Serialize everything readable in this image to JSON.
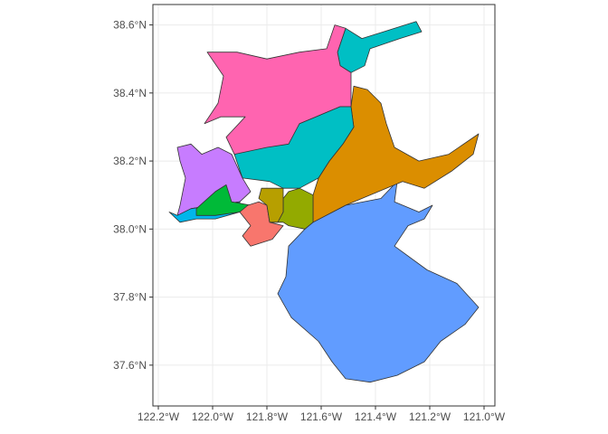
{
  "map": {
    "axes": {
      "x_ticks": [
        {
          "value": -122.2,
          "label": "122.2°W"
        },
        {
          "value": -122.0,
          "label": "122.0°W"
        },
        {
          "value": -121.8,
          "label": "121.8°W"
        },
        {
          "value": -121.6,
          "label": "121.6°W"
        },
        {
          "value": -121.4,
          "label": "121.4°W"
        },
        {
          "value": -121.2,
          "label": "121.2°W"
        },
        {
          "value": -121.0,
          "label": "121.0°W"
        }
      ],
      "y_ticks": [
        {
          "value": 38.6,
          "label": "38.6°N"
        },
        {
          "value": 38.4,
          "label": "38.4°N"
        },
        {
          "value": 38.2,
          "label": "38.2°N"
        },
        {
          "value": 38.0,
          "label": "38.0°N"
        },
        {
          "value": 37.8,
          "label": "37.8°N"
        },
        {
          "value": 37.6,
          "label": "37.6°N"
        }
      ],
      "xlim": [
        -122.22,
        -120.96
      ],
      "ylim": [
        37.48,
        38.66
      ]
    },
    "regions": [
      {
        "color": "#619CFF",
        "coords": [
          [
            -121.63,
            38.02
          ],
          [
            -121.51,
            38.07
          ],
          [
            -121.38,
            38.09
          ],
          [
            -121.32,
            38.14
          ],
          [
            -121.33,
            38.08
          ],
          [
            -121.24,
            38.05
          ],
          [
            -121.19,
            38.07
          ],
          [
            -121.22,
            38.03
          ],
          [
            -121.28,
            38.01
          ],
          [
            -121.33,
            37.95
          ],
          [
            -121.21,
            37.88
          ],
          [
            -121.1,
            37.84
          ],
          [
            -121.02,
            37.77
          ],
          [
            -121.07,
            37.72
          ],
          [
            -121.16,
            37.67
          ],
          [
            -121.22,
            37.61
          ],
          [
            -121.32,
            37.57
          ],
          [
            -121.42,
            37.55
          ],
          [
            -121.51,
            37.56
          ],
          [
            -121.56,
            37.61
          ],
          [
            -121.61,
            37.67
          ],
          [
            -121.71,
            37.74
          ],
          [
            -121.76,
            37.81
          ],
          [
            -121.73,
            37.86
          ],
          [
            -121.72,
            37.95
          ],
          [
            -121.66,
            38.0
          ]
        ]
      },
      {
        "color": "#DB8E00",
        "coords": [
          [
            -121.61,
            38.15
          ],
          [
            -121.57,
            38.2
          ],
          [
            -121.52,
            38.25
          ],
          [
            -121.48,
            38.3
          ],
          [
            -121.49,
            38.36
          ],
          [
            -121.48,
            38.42
          ],
          [
            -121.43,
            38.41
          ],
          [
            -121.38,
            38.37
          ],
          [
            -121.36,
            38.31
          ],
          [
            -121.33,
            38.24
          ],
          [
            -121.24,
            38.2
          ],
          [
            -121.13,
            38.22
          ],
          [
            -121.02,
            38.28
          ],
          [
            -121.04,
            38.22
          ],
          [
            -121.12,
            38.17
          ],
          [
            -121.22,
            38.12
          ],
          [
            -121.3,
            38.14
          ],
          [
            -121.42,
            38.1
          ],
          [
            -121.51,
            38.07
          ],
          [
            -121.63,
            38.02
          ],
          [
            -121.63,
            38.1
          ]
        ]
      },
      {
        "color": "#00BFC4",
        "coords": [
          [
            -121.92,
            38.22
          ],
          [
            -121.68,
            38.31
          ],
          [
            -121.62,
            38.33
          ],
          [
            -121.53,
            38.36
          ],
          [
            -121.49,
            38.36
          ],
          [
            -121.48,
            38.3
          ],
          [
            -121.52,
            38.25
          ],
          [
            -121.57,
            38.2
          ],
          [
            -121.61,
            38.15
          ],
          [
            -121.68,
            38.12
          ],
          [
            -121.74,
            38.12
          ],
          [
            -121.79,
            38.14
          ],
          [
            -121.89,
            38.15
          ]
        ]
      },
      {
        "color": "#00BFC4",
        "coords": [
          [
            -121.51,
            38.59
          ],
          [
            -121.45,
            38.56
          ],
          [
            -121.37,
            38.58
          ],
          [
            -121.25,
            38.61
          ],
          [
            -121.23,
            38.58
          ],
          [
            -121.31,
            38.56
          ],
          [
            -121.42,
            38.53
          ],
          [
            -121.44,
            38.48
          ],
          [
            -121.49,
            38.46
          ],
          [
            -121.53,
            38.48
          ],
          [
            -121.54,
            38.52
          ]
        ]
      },
      {
        "color": "#FF64B0",
        "coords": [
          [
            -122.02,
            38.52
          ],
          [
            -121.91,
            38.52
          ],
          [
            -121.8,
            38.5
          ],
          [
            -121.68,
            38.52
          ],
          [
            -121.58,
            38.53
          ],
          [
            -121.55,
            38.6
          ],
          [
            -121.51,
            38.59
          ],
          [
            -121.54,
            38.52
          ],
          [
            -121.53,
            38.48
          ],
          [
            -121.49,
            38.46
          ],
          [
            -121.49,
            38.41
          ],
          [
            -121.49,
            38.36
          ],
          [
            -121.53,
            38.36
          ],
          [
            -121.62,
            38.33
          ],
          [
            -121.68,
            38.31
          ],
          [
            -121.72,
            38.25
          ],
          [
            -121.8,
            38.24
          ],
          [
            -121.92,
            38.22
          ],
          [
            -121.95,
            38.27
          ],
          [
            -121.88,
            38.33
          ],
          [
            -121.97,
            38.33
          ],
          [
            -122.03,
            38.31
          ],
          [
            -121.98,
            38.37
          ],
          [
            -121.96,
            38.45
          ]
        ]
      },
      {
        "color": "#C77CFF",
        "coords": [
          [
            -122.13,
            38.24
          ],
          [
            -122.08,
            38.25
          ],
          [
            -122.04,
            38.22
          ],
          [
            -121.98,
            38.24
          ],
          [
            -121.93,
            38.22
          ],
          [
            -121.89,
            38.15
          ],
          [
            -121.86,
            38.11
          ],
          [
            -121.9,
            38.08
          ],
          [
            -122.0,
            38.07
          ],
          [
            -122.08,
            38.06
          ],
          [
            -122.13,
            38.04
          ],
          [
            -122.12,
            38.07
          ],
          [
            -122.1,
            38.15
          ],
          [
            -122.12,
            38.2
          ]
        ]
      },
      {
        "color": "#00B6EB",
        "coords": [
          [
            -122.13,
            38.04
          ],
          [
            -122.08,
            38.06
          ],
          [
            -122.0,
            38.07
          ],
          [
            -121.9,
            38.08
          ],
          [
            -121.9,
            38.05
          ],
          [
            -121.99,
            38.03
          ],
          [
            -122.06,
            38.03
          ],
          [
            -122.12,
            38.02
          ],
          [
            -122.16,
            38.05
          ]
        ]
      },
      {
        "color": "#00BA38",
        "coords": [
          [
            -122.06,
            38.06
          ],
          [
            -121.99,
            38.11
          ],
          [
            -121.95,
            38.13
          ],
          [
            -121.93,
            38.08
          ],
          [
            -121.86,
            38.07
          ],
          [
            -121.9,
            38.05
          ],
          [
            -121.99,
            38.04
          ],
          [
            -122.06,
            38.04
          ]
        ]
      },
      {
        "color": "#F8766D",
        "coords": [
          [
            -121.87,
            38.07
          ],
          [
            -121.83,
            38.08
          ],
          [
            -121.8,
            38.07
          ],
          [
            -121.79,
            38.02
          ],
          [
            -121.74,
            38.01
          ],
          [
            -121.78,
            37.97
          ],
          [
            -121.86,
            37.95
          ],
          [
            -121.89,
            37.98
          ],
          [
            -121.86,
            38.01
          ],
          [
            -121.9,
            38.05
          ]
        ]
      },
      {
        "color": "#93AA00",
        "coords": [
          [
            -121.78,
            38.02
          ],
          [
            -121.74,
            38.02
          ],
          [
            -121.72,
            38.01
          ],
          [
            -121.66,
            38.0
          ],
          [
            -121.63,
            38.02
          ],
          [
            -121.63,
            38.1
          ],
          [
            -121.68,
            38.12
          ],
          [
            -121.72,
            38.11
          ],
          [
            -121.74,
            38.09
          ],
          [
            -121.74,
            38.05
          ]
        ]
      },
      {
        "color": "#B79F00",
        "coords": [
          [
            -121.82,
            38.12
          ],
          [
            -121.74,
            38.12
          ],
          [
            -121.74,
            38.05
          ],
          [
            -121.76,
            38.02
          ],
          [
            -121.79,
            38.02
          ],
          [
            -121.8,
            38.07
          ],
          [
            -121.83,
            38.09
          ]
        ]
      }
    ]
  }
}
